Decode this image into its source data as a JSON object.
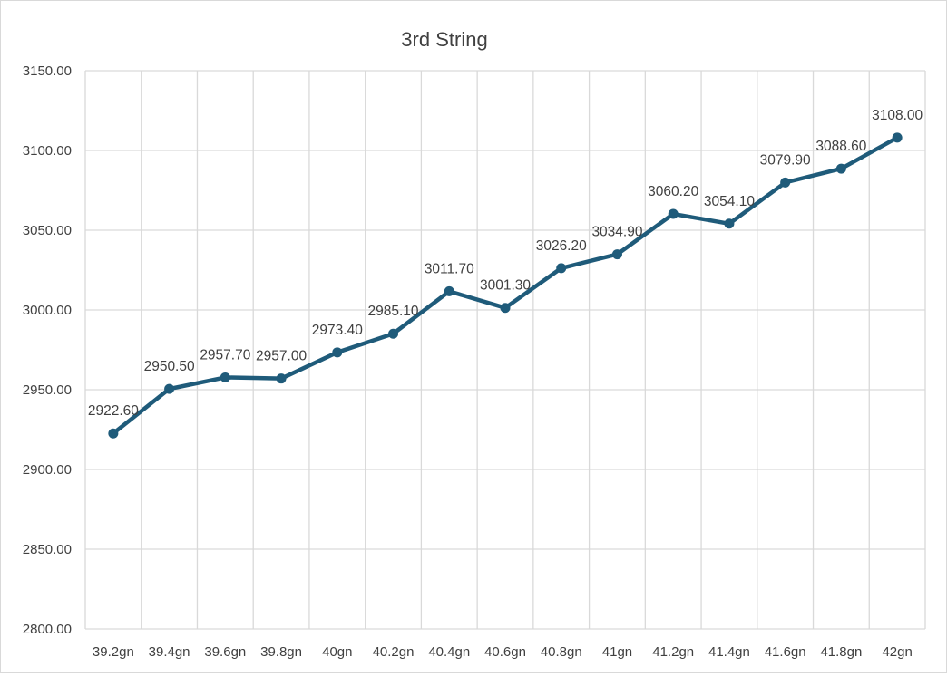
{
  "chart_data": {
    "type": "line",
    "title": "3rd String",
    "xlabel": "",
    "ylabel": "",
    "categories": [
      "39.2gn",
      "39.4gn",
      "39.6gn",
      "39.8gn",
      "40gn",
      "40.2gn",
      "40.4gn",
      "40.6gn",
      "40.8gn",
      "41gn",
      "41.2gn",
      "41.4gn",
      "41.6gn",
      "41.8gn",
      "42gn"
    ],
    "series": [
      {
        "values": [
          2922.6,
          2950.5,
          2957.7,
          2957.0,
          2973.4,
          2985.1,
          3011.7,
          3001.3,
          3026.2,
          3034.9,
          3060.2,
          3054.1,
          3079.9,
          3088.6,
          3108.0
        ],
        "data_labels": [
          "2922.60",
          "2950.50",
          "2957.70",
          "2957.00",
          "2973.40",
          "2985.10",
          "3011.70",
          "3001.30",
          "3026.20",
          "3034.90",
          "3060.20",
          "3054.10",
          "3079.90",
          "3088.60",
          "3108.00"
        ],
        "color": "#1f5b7a"
      }
    ],
    "ylim": [
      2800,
      3150
    ],
    "yticks": [
      "2800.00",
      "2850.00",
      "2900.00",
      "2950.00",
      "3000.00",
      "3050.00",
      "3100.00",
      "3150.00"
    ],
    "grid": true,
    "legend": "none",
    "colors": {
      "line": "#1f5b7a",
      "grid": "#d9d9d9",
      "text": "#404040"
    }
  }
}
